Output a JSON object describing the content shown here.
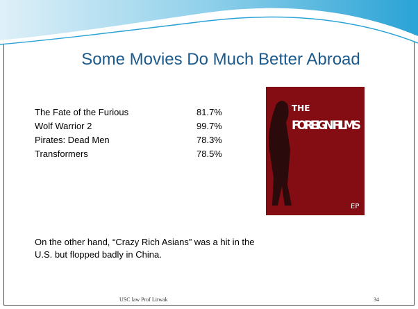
{
  "title": "Some Movies Do Much Better Abroad",
  "table": {
    "rows": [
      [
        "The Fate of the Furious",
        "81.7%"
      ],
      [
        "Wolf Warrior 2",
        "99.7%"
      ],
      [
        "Pirates: Dead Men",
        "78.3%"
      ],
      [
        "Transformers",
        "78.5%"
      ]
    ]
  },
  "image": {
    "text_1": "THE",
    "text_2": "FOREIGN FILMS",
    "text_3": "EP"
  },
  "note": "On the other hand, “Crazy Rich Asians” was a hit in the U.S. but flopped badly in China.",
  "footer": "USC law Prof Litwak",
  "page_number": "34"
}
